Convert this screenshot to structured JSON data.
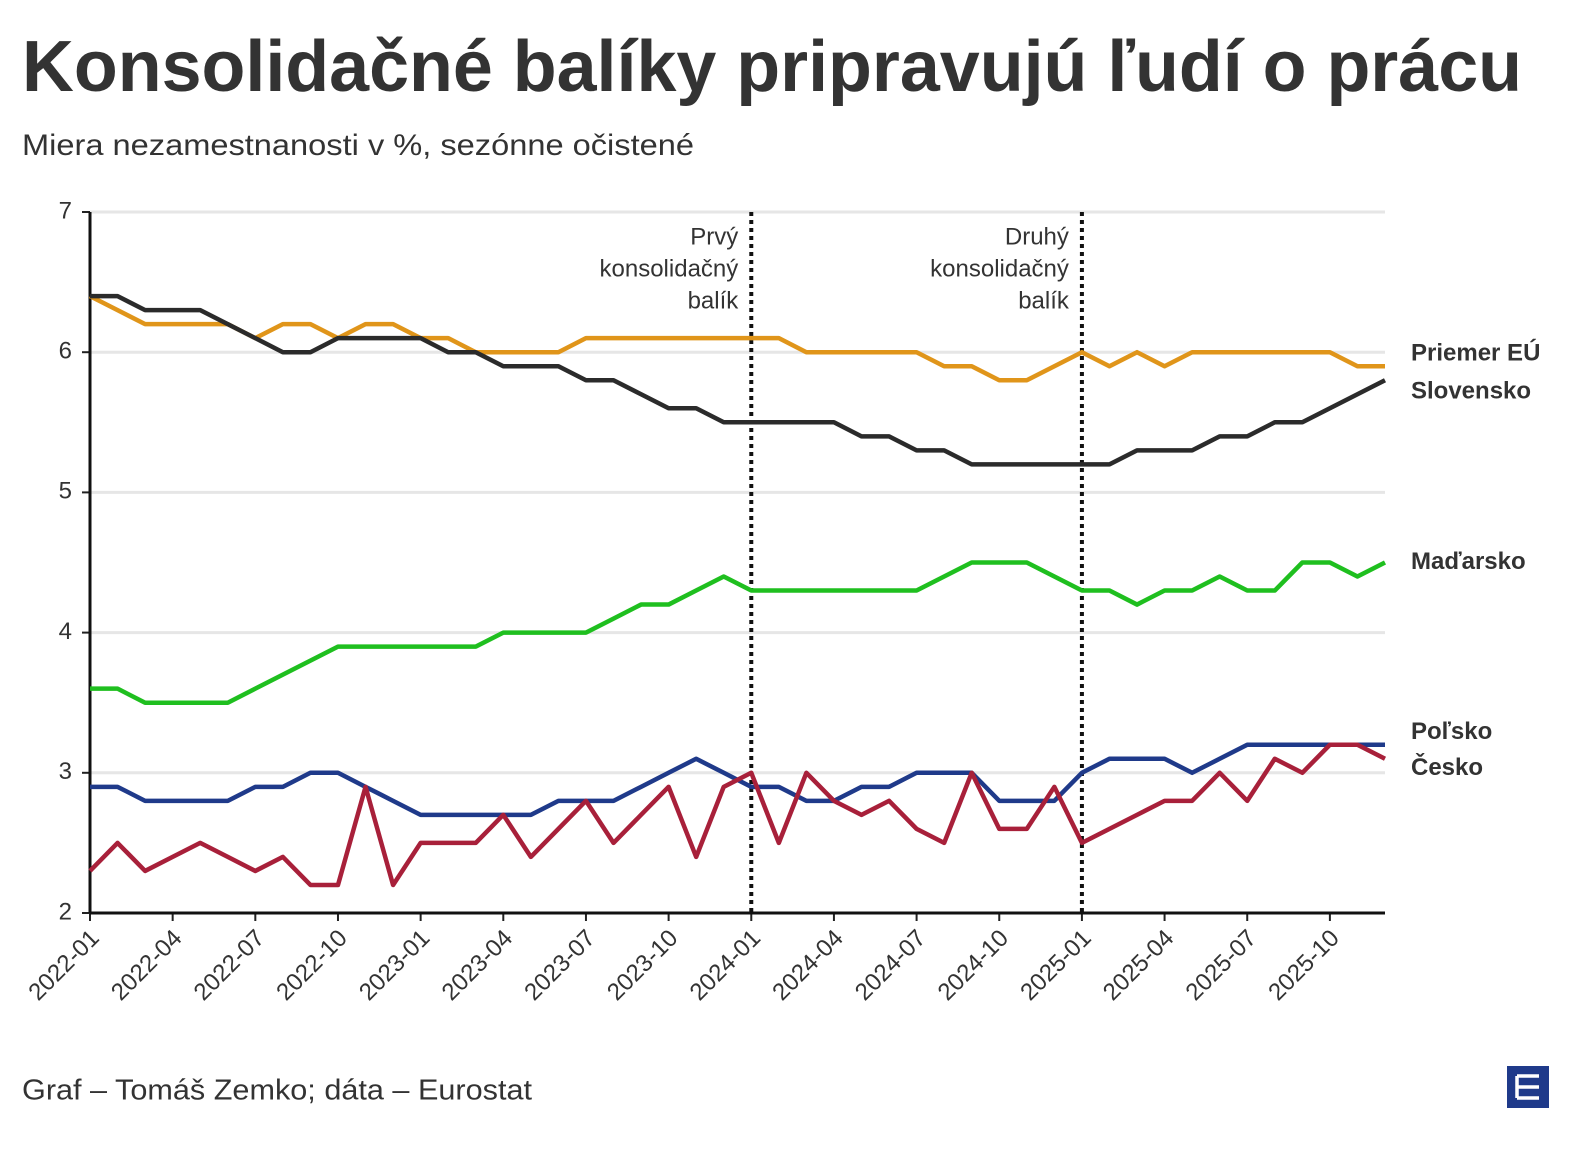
{
  "chart_data": {
    "type": "line",
    "title": "Konsolidačné balíky pripravujú ľudí o prácu",
    "subtitle": "Miera nezamestnanosti v %, sezónne očistené",
    "source": "Graf – Tomáš Zemko; dáta – Eurostat",
    "categories": [
      "2022-01",
      null,
      null,
      "2022-04",
      null,
      null,
      "2022-07",
      null,
      null,
      "2022-10",
      null,
      null,
      "2023-01",
      null,
      null,
      "2023-04",
      null,
      null,
      "2023-07",
      null,
      null,
      "2023-10",
      null,
      null,
      "2024-01",
      null,
      null,
      "2024-04",
      null,
      null,
      "2024-07",
      null,
      null,
      "2024-10",
      null,
      null,
      "2025-01",
      null,
      null,
      "2025-04",
      null,
      null,
      "2025-07",
      null,
      null,
      "2025-10",
      null,
      null
    ],
    "series": [
      {
        "name": "Priemer EÚ",
        "color": "#e0951a",
        "values": [
          6.4,
          6.3,
          6.2,
          6.2,
          6.2,
          6.2,
          6.1,
          6.2,
          6.2,
          6.1,
          6.2,
          6.2,
          6.1,
          6.1,
          6.0,
          6.0,
          6.0,
          6.0,
          6.1,
          6.1,
          6.1,
          6.1,
          6.1,
          6.1,
          6.1,
          6.1,
          6.0,
          6.0,
          6.0,
          6.0,
          6.0,
          5.9,
          5.9,
          5.8,
          5.8,
          5.9,
          6.0,
          5.9,
          6.0,
          5.9,
          6.0,
          6.0,
          6.0,
          6.0,
          6.0,
          6.0,
          5.9,
          5.9
        ]
      },
      {
        "name": "Slovensko",
        "color": "#2b2b2b",
        "values": [
          6.4,
          6.4,
          6.3,
          6.3,
          6.3,
          6.2,
          6.1,
          6.0,
          6.0,
          6.1,
          6.1,
          6.1,
          6.1,
          6.0,
          6.0,
          5.9,
          5.9,
          5.9,
          5.8,
          5.8,
          5.7,
          5.6,
          5.6,
          5.5,
          5.5,
          5.5,
          5.5,
          5.5,
          5.4,
          5.4,
          5.3,
          5.3,
          5.2,
          5.2,
          5.2,
          5.2,
          5.2,
          5.2,
          5.3,
          5.3,
          5.3,
          5.4,
          5.4,
          5.5,
          5.5,
          5.6,
          5.7,
          5.8
        ]
      },
      {
        "name": "Maďarsko",
        "color": "#1fbf1f",
        "values": [
          3.6,
          3.6,
          3.5,
          3.5,
          3.5,
          3.5,
          3.6,
          3.7,
          3.8,
          3.9,
          3.9,
          3.9,
          3.9,
          3.9,
          3.9,
          4.0,
          4.0,
          4.0,
          4.0,
          4.1,
          4.2,
          4.2,
          4.3,
          4.4,
          4.3,
          4.3,
          4.3,
          4.3,
          4.3,
          4.3,
          4.3,
          4.4,
          4.5,
          4.5,
          4.5,
          4.4,
          4.3,
          4.3,
          4.2,
          4.3,
          4.3,
          4.4,
          4.3,
          4.3,
          4.5,
          4.5,
          4.4,
          4.5
        ]
      },
      {
        "name": "Poľsko",
        "color": "#1f3a8a",
        "values": [
          2.9,
          2.9,
          2.8,
          2.8,
          2.8,
          2.8,
          2.9,
          2.9,
          3.0,
          3.0,
          2.9,
          2.8,
          2.7,
          2.7,
          2.7,
          2.7,
          2.7,
          2.8,
          2.8,
          2.8,
          2.9,
          3.0,
          3.1,
          3.0,
          2.9,
          2.9,
          2.8,
          2.8,
          2.9,
          2.9,
          3.0,
          3.0,
          3.0,
          2.8,
          2.8,
          2.8,
          3.0,
          3.1,
          3.1,
          3.1,
          3.0,
          3.1,
          3.2,
          3.2,
          3.2,
          3.2,
          3.2,
          3.2
        ]
      },
      {
        "name": "Česko",
        "color": "#a8203a",
        "values": [
          2.3,
          2.5,
          2.3,
          2.4,
          2.5,
          2.4,
          2.3,
          2.4,
          2.2,
          2.2,
          2.9,
          2.2,
          2.5,
          2.5,
          2.5,
          2.7,
          2.4,
          2.6,
          2.8,
          2.5,
          2.7,
          2.9,
          2.4,
          2.9,
          3.0,
          2.5,
          3.0,
          2.8,
          2.7,
          2.8,
          2.6,
          2.5,
          3.0,
          2.6,
          2.6,
          2.9,
          2.5,
          2.6,
          2.7,
          2.8,
          2.8,
          3.0,
          2.8,
          3.1,
          3.0,
          3.2,
          3.2,
          3.1
        ]
      }
    ],
    "annotations": [
      {
        "x": "2024-01",
        "lines": [
          "Prvý",
          "konsolidačný",
          "balík"
        ]
      },
      {
        "x": "2025-01",
        "lines": [
          "Druhý",
          "konsolidačný",
          "balík"
        ]
      }
    ],
    "ylim": [
      2,
      7
    ],
    "yticks": [
      2,
      3,
      4,
      5,
      6,
      7
    ],
    "grid": true
  }
}
